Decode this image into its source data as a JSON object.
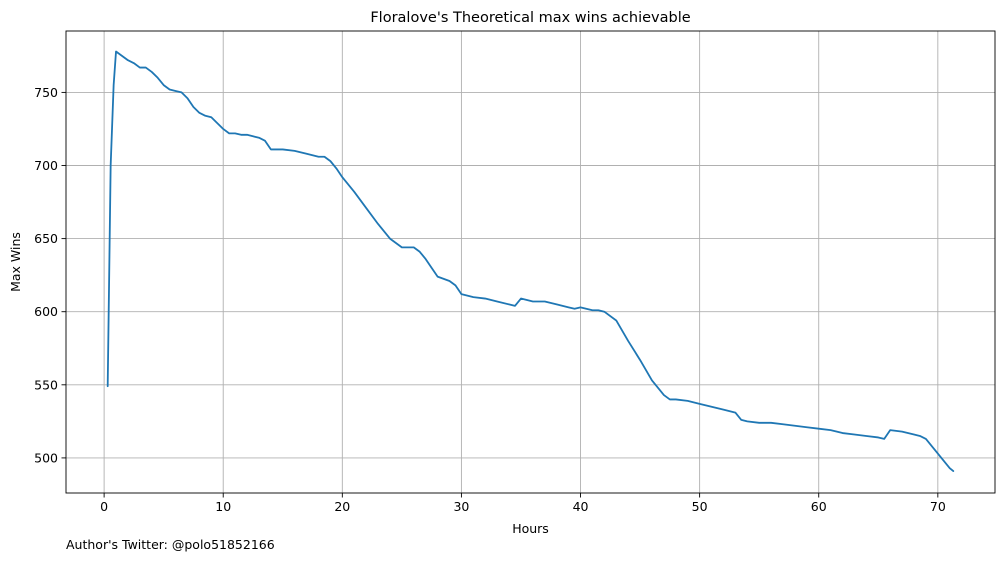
{
  "chart_data": {
    "type": "line",
    "title": "Floralove's Theoretical max wins achievable",
    "xlabel": "Hours",
    "ylabel": "Max Wins",
    "xlim": [
      -3.2,
      74.8
    ],
    "ylim": [
      476,
      792
    ],
    "xticks": [
      0,
      10,
      20,
      30,
      40,
      50,
      60,
      70
    ],
    "yticks": [
      500,
      550,
      600,
      650,
      700,
      750
    ],
    "grid": true,
    "line_color": "#1f77b4",
    "series": [
      {
        "x": [
          0.3,
          0.55,
          0.8,
          1.0,
          1.5,
          2.0,
          2.5,
          3.0,
          3.5,
          4.0,
          4.5,
          5.0,
          5.5,
          6.0,
          6.5,
          7.0,
          7.5,
          8.0,
          8.5,
          9.0,
          9.5,
          10.0,
          10.5,
          11.0,
          11.5,
          12.0,
          12.5,
          13.0,
          13.5,
          14.0,
          15.0,
          16.0,
          17.0,
          18.0,
          18.5,
          19.0,
          19.5,
          20.0,
          21.0,
          22.0,
          23.0,
          24.0,
          25.0,
          25.5,
          26.0,
          26.5,
          27.0,
          27.5,
          28.0,
          29.0,
          29.5,
          30.0,
          30.5,
          31.0,
          32.0,
          33.0,
          34.0,
          34.5,
          35.0,
          36.0,
          37.0,
          38.0,
          39.0,
          39.5,
          40.0,
          41.0,
          41.5,
          42.0,
          43.0,
          44.0,
          45.0,
          46.0,
          47.0,
          47.5,
          48.0,
          49.0,
          50.0,
          51.0,
          52.0,
          53.0,
          53.5,
          54.0,
          55.0,
          56.0,
          57.0,
          58.0,
          59.0,
          60.0,
          61.0,
          62.0,
          63.0,
          64.0,
          65.0,
          65.5,
          66.0,
          67.0,
          68.0,
          68.5,
          69.0,
          70.0,
          71.0,
          71.3
        ],
        "y": [
          549,
          700,
          755,
          778,
          775,
          772,
          770,
          767,
          767,
          764,
          760,
          755,
          752,
          751,
          750,
          746,
          740,
          736,
          734,
          733,
          729,
          725,
          722,
          722,
          721,
          721,
          720,
          719,
          717,
          711,
          711,
          710,
          708,
          706,
          706,
          703,
          698,
          692,
          682,
          671,
          660,
          650,
          644,
          644,
          644,
          641,
          636,
          630,
          624,
          621,
          618,
          612,
          611,
          610,
          609,
          607,
          605,
          604,
          609,
          607,
          607,
          605,
          603,
          602,
          603,
          601,
          601,
          600,
          594,
          580,
          567,
          553,
          543,
          540,
          540,
          539,
          537,
          535,
          533,
          531,
          526,
          525,
          524,
          524,
          523,
          522,
          521,
          520,
          519,
          517,
          516,
          515,
          514,
          513,
          519,
          518,
          516,
          515,
          513,
          503,
          493,
          491
        ]
      }
    ]
  },
  "footer": {
    "text": "Author's Twitter: @polo51852166"
  }
}
